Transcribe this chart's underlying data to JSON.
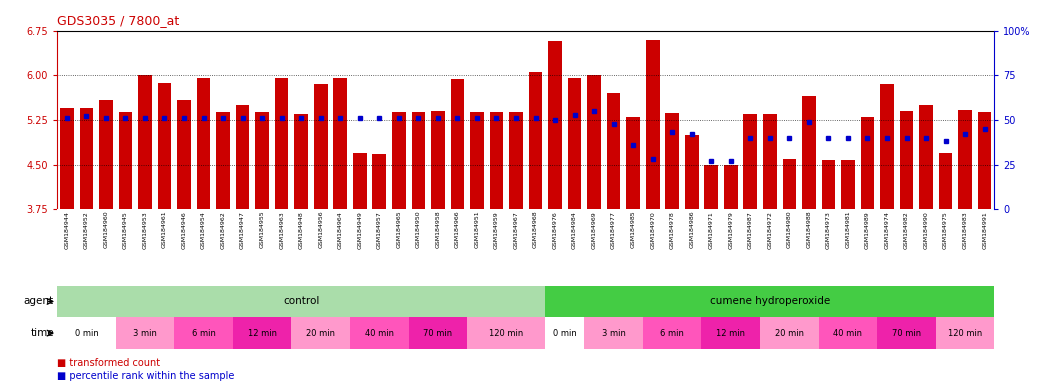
{
  "title": "GDS3035 / 7800_at",
  "ylim_left": [
    3.75,
    6.75
  ],
  "ylim_right": [
    0,
    100
  ],
  "yticks_left": [
    3.75,
    4.5,
    5.25,
    6.0,
    6.75
  ],
  "yticks_right": [
    0,
    25,
    50,
    75,
    100
  ],
  "bar_color": "#CC0000",
  "dot_color": "#0000CC",
  "fig_bg_color": "#FFFFFF",
  "title_color": "#CC0000",
  "left_axis_color": "#CC0000",
  "right_axis_color": "#0000CC",
  "gsm_ids": [
    "GSM184944",
    "GSM184952",
    "GSM184960",
    "GSM184945",
    "GSM184953",
    "GSM184961",
    "GSM184946",
    "GSM184954",
    "GSM184962",
    "GSM184947",
    "GSM184955",
    "GSM184963",
    "GSM184948",
    "GSM184956",
    "GSM184964",
    "GSM184949",
    "GSM184957",
    "GSM184965",
    "GSM184950",
    "GSM184958",
    "GSM184966",
    "GSM184951",
    "GSM184959",
    "GSM184967",
    "GSM184968",
    "GSM184976",
    "GSM184984",
    "GSM184969",
    "GSM184977",
    "GSM184985",
    "GSM184970",
    "GSM184978",
    "GSM184986",
    "GSM184971",
    "GSM184979",
    "GSM184987",
    "GSM184972",
    "GSM184980",
    "GSM184988",
    "GSM184973",
    "GSM184981",
    "GSM184989",
    "GSM184974",
    "GSM184982",
    "GSM184990",
    "GSM184975",
    "GSM184983",
    "GSM184991"
  ],
  "transformed_count": [
    5.45,
    5.45,
    5.58,
    5.38,
    6.0,
    5.88,
    5.58,
    5.96,
    5.38,
    5.5,
    5.38,
    5.96,
    5.35,
    5.86,
    5.95,
    4.7,
    4.68,
    5.38,
    5.38,
    5.4,
    5.94,
    5.38,
    5.38,
    5.38,
    6.06,
    6.58,
    5.96,
    6.0,
    5.7,
    5.3,
    6.59,
    5.36,
    5.0,
    4.5,
    4.5,
    5.35,
    5.35,
    4.6,
    5.65,
    4.58,
    4.58,
    5.3,
    5.86,
    5.4,
    5.5,
    4.7,
    5.42,
    5.38
  ],
  "percentile_rank": [
    51,
    52,
    51,
    51,
    51,
    51,
    51,
    51,
    51,
    51,
    51,
    51,
    51,
    51,
    51,
    51,
    51,
    51,
    51,
    51,
    51,
    51,
    51,
    51,
    51,
    50,
    53,
    55,
    48,
    36,
    28,
    43,
    42,
    27,
    27,
    40,
    40,
    40,
    49,
    40,
    40,
    40,
    40,
    40,
    40,
    38,
    42,
    45
  ],
  "agent_groups": [
    {
      "label": "control",
      "start": 0,
      "end": 25,
      "color": "#AADDAA"
    },
    {
      "label": "cumene hydroperoxide",
      "start": 25,
      "end": 48,
      "color": "#44CC44"
    }
  ],
  "time_groups": [
    {
      "label": "0 min",
      "start": 0,
      "end": 3,
      "color": "#FFFFFF"
    },
    {
      "label": "3 min",
      "start": 3,
      "end": 6,
      "color": "#FF99CC"
    },
    {
      "label": "6 min",
      "start": 6,
      "end": 9,
      "color": "#FF55BB"
    },
    {
      "label": "12 min",
      "start": 9,
      "end": 12,
      "color": "#EE22AA"
    },
    {
      "label": "20 min",
      "start": 12,
      "end": 15,
      "color": "#FF99CC"
    },
    {
      "label": "40 min",
      "start": 15,
      "end": 18,
      "color": "#FF55BB"
    },
    {
      "label": "70 min",
      "start": 18,
      "end": 21,
      "color": "#EE22AA"
    },
    {
      "label": "120 min",
      "start": 21,
      "end": 25,
      "color": "#FF99CC"
    },
    {
      "label": "0 min",
      "start": 25,
      "end": 27,
      "color": "#FFFFFF"
    },
    {
      "label": "3 min",
      "start": 27,
      "end": 30,
      "color": "#FF99CC"
    },
    {
      "label": "6 min",
      "start": 30,
      "end": 33,
      "color": "#FF55BB"
    },
    {
      "label": "12 min",
      "start": 33,
      "end": 36,
      "color": "#EE22AA"
    },
    {
      "label": "20 min",
      "start": 36,
      "end": 39,
      "color": "#FF99CC"
    },
    {
      "label": "40 min",
      "start": 39,
      "end": 42,
      "color": "#FF55BB"
    },
    {
      "label": "70 min",
      "start": 42,
      "end": 45,
      "color": "#EE22AA"
    },
    {
      "label": "120 min",
      "start": 45,
      "end": 48,
      "color": "#FF99CC"
    }
  ]
}
